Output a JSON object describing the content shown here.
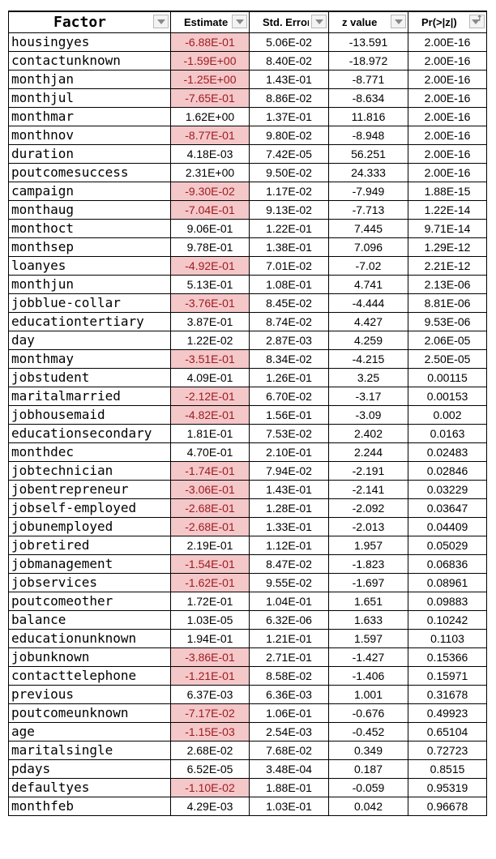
{
  "columns": [
    {
      "key": "factor",
      "label": "Factor"
    },
    {
      "key": "estimate",
      "label": "Estimate"
    },
    {
      "key": "std_error",
      "label": "Std. Error"
    },
    {
      "key": "z_value",
      "label": "z value"
    },
    {
      "key": "p_value",
      "label": "Pr(>|z|)"
    }
  ],
  "highlight_color": "#f4c7c9",
  "highlight_text_color": "#9c1b1f",
  "rows": [
    [
      "housingyes",
      "-6.88E-01",
      "5.06E-02",
      "-13.591",
      "2.00E-16"
    ],
    [
      "contactunknown",
      "-1.59E+00",
      "8.40E-02",
      "-18.972",
      "2.00E-16"
    ],
    [
      "monthjan",
      "-1.25E+00",
      "1.43E-01",
      "-8.771",
      "2.00E-16"
    ],
    [
      "monthjul",
      "-7.65E-01",
      "8.86E-02",
      "-8.634",
      "2.00E-16"
    ],
    [
      "monthmar",
      "1.62E+00",
      "1.37E-01",
      "11.816",
      "2.00E-16"
    ],
    [
      "monthnov",
      "-8.77E-01",
      "9.80E-02",
      "-8.948",
      "2.00E-16"
    ],
    [
      "duration",
      "4.18E-03",
      "7.42E-05",
      "56.251",
      "2.00E-16"
    ],
    [
      "poutcomesuccess",
      "2.31E+00",
      "9.50E-02",
      "24.333",
      "2.00E-16"
    ],
    [
      "campaign",
      "-9.30E-02",
      "1.17E-02",
      "-7.949",
      "1.88E-15"
    ],
    [
      "monthaug",
      "-7.04E-01",
      "9.13E-02",
      "-7.713",
      "1.22E-14"
    ],
    [
      "monthoct",
      "9.06E-01",
      "1.22E-01",
      "7.445",
      "9.71E-14"
    ],
    [
      "monthsep",
      "9.78E-01",
      "1.38E-01",
      "7.096",
      "1.29E-12"
    ],
    [
      "loanyes",
      "-4.92E-01",
      "7.01E-02",
      "-7.02",
      "2.21E-12"
    ],
    [
      "monthjun",
      "5.13E-01",
      "1.08E-01",
      "4.741",
      "2.13E-06"
    ],
    [
      "jobblue-collar",
      "-3.76E-01",
      "8.45E-02",
      "-4.444",
      "8.81E-06"
    ],
    [
      "educationtertiary",
      "3.87E-01",
      "8.74E-02",
      "4.427",
      "9.53E-06"
    ],
    [
      "day",
      "1.22E-02",
      "2.87E-03",
      "4.259",
      "2.06E-05"
    ],
    [
      "monthmay",
      "-3.51E-01",
      "8.34E-02",
      "-4.215",
      "2.50E-05"
    ],
    [
      "jobstudent",
      "4.09E-01",
      "1.26E-01",
      "3.25",
      "0.00115"
    ],
    [
      "maritalmarried",
      "-2.12E-01",
      "6.70E-02",
      "-3.17",
      "0.00153"
    ],
    [
      "jobhousemaid",
      "-4.82E-01",
      "1.56E-01",
      "-3.09",
      "0.002"
    ],
    [
      "educationsecondary",
      "1.81E-01",
      "7.53E-02",
      "2.402",
      "0.0163"
    ],
    [
      "monthdec",
      "4.70E-01",
      "2.10E-01",
      "2.244",
      "0.02483"
    ],
    [
      "jobtechnician",
      "-1.74E-01",
      "7.94E-02",
      "-2.191",
      "0.02846"
    ],
    [
      "jobentrepreneur",
      "-3.06E-01",
      "1.43E-01",
      "-2.141",
      "0.03229"
    ],
    [
      "jobself-employed",
      "-2.68E-01",
      "1.28E-01",
      "-2.092",
      "0.03647"
    ],
    [
      "jobunemployed",
      "-2.68E-01",
      "1.33E-01",
      "-2.013",
      "0.04409"
    ],
    [
      "jobretired",
      "2.19E-01",
      "1.12E-01",
      "1.957",
      "0.05029"
    ],
    [
      "jobmanagement",
      "-1.54E-01",
      "8.47E-02",
      "-1.823",
      "0.06836"
    ],
    [
      "jobservices",
      "-1.62E-01",
      "9.55E-02",
      "-1.697",
      "0.08961"
    ],
    [
      "poutcomeother",
      "1.72E-01",
      "1.04E-01",
      "1.651",
      "0.09883"
    ],
    [
      "balance",
      "1.03E-05",
      "6.32E-06",
      "1.633",
      "0.10242"
    ],
    [
      "educationunknown",
      "1.94E-01",
      "1.21E-01",
      "1.597",
      "0.1103"
    ],
    [
      "jobunknown",
      "-3.86E-01",
      "2.71E-01",
      "-1.427",
      "0.15366"
    ],
    [
      "contacttelephone",
      "-1.21E-01",
      "8.58E-02",
      "-1.406",
      "0.15971"
    ],
    [
      "previous",
      "6.37E-03",
      "6.36E-03",
      "1.001",
      "0.31678"
    ],
    [
      "poutcomeunknown",
      "-7.17E-02",
      "1.06E-01",
      "-0.676",
      "0.49923"
    ],
    [
      "age",
      "-1.15E-03",
      "2.54E-03",
      "-0.452",
      "0.65104"
    ],
    [
      "maritalsingle",
      "2.68E-02",
      "7.68E-02",
      "0.349",
      "0.72723"
    ],
    [
      "pdays",
      "6.52E-05",
      "3.48E-04",
      "0.187",
      "0.8515"
    ],
    [
      "defaultyes",
      "-1.10E-02",
      "1.88E-01",
      "-0.059",
      "0.95319"
    ],
    [
      "monthfeb",
      "4.29E-03",
      "1.03E-01",
      "0.042",
      "0.96678"
    ]
  ]
}
